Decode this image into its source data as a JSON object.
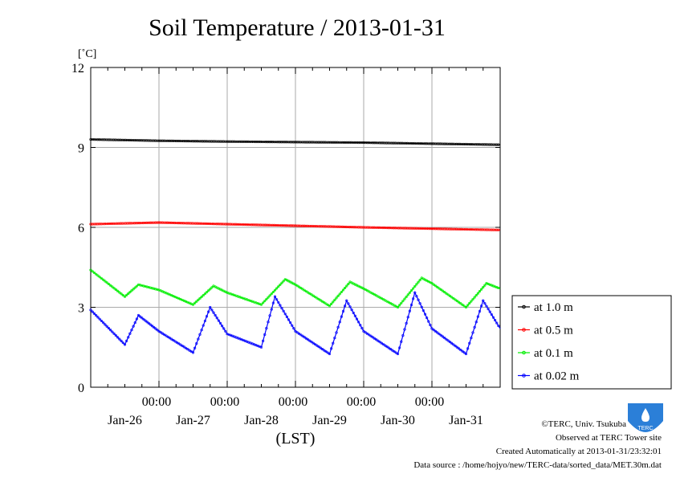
{
  "chart_data": {
    "type": "line",
    "title": "Soil Temperature / 2013-01-31",
    "ylabel": "[˚C]",
    "xlabel": "(LST)",
    "ylim": [
      0,
      12
    ],
    "yticks": [
      "0",
      "3",
      "6",
      "9",
      "12"
    ],
    "xlim_days": [
      0,
      6
    ],
    "xtick_time_labels": [
      "00:00",
      "00:00",
      "00:00",
      "00:00",
      "00:00"
    ],
    "xtick_date_labels": [
      "Jan-26",
      "Jan-27",
      "Jan-28",
      "Jan-29",
      "Jan-30",
      "Jan-31"
    ],
    "grid": true,
    "legend_position": "right",
    "series": [
      {
        "name": "at 1.0 m",
        "color": "#000000",
        "x": [
          0,
          1,
          2,
          3,
          4,
          5,
          6
        ],
        "y": [
          9.3,
          9.25,
          9.22,
          9.2,
          9.18,
          9.14,
          9.1
        ]
      },
      {
        "name": "at 0.5 m",
        "color": "#ff0000",
        "x": [
          0,
          1,
          2,
          3,
          4,
          5,
          6
        ],
        "y": [
          6.12,
          6.18,
          6.12,
          6.06,
          6.0,
          5.95,
          5.9
        ]
      },
      {
        "name": "at 0.1 m",
        "color": "#00ee00",
        "x": [
          0,
          0.5,
          0.7,
          1.0,
          1.5,
          1.8,
          2.0,
          2.5,
          2.85,
          3.0,
          3.5,
          3.8,
          4.0,
          4.5,
          4.85,
          5.0,
          5.5,
          5.8,
          6.0
        ],
        "y": [
          4.4,
          3.4,
          3.85,
          3.65,
          3.1,
          3.8,
          3.55,
          3.1,
          4.05,
          3.85,
          3.05,
          3.95,
          3.7,
          3.0,
          4.1,
          3.9,
          3.0,
          3.9,
          3.7
        ]
      },
      {
        "name": "at 0.02 m",
        "color": "#0000ff",
        "x": [
          0,
          0.5,
          0.7,
          1.0,
          1.5,
          1.75,
          2.0,
          2.5,
          2.7,
          3.0,
          3.5,
          3.75,
          4.0,
          4.5,
          4.75,
          5.0,
          5.5,
          5.75,
          6.0
        ],
        "y": [
          2.9,
          1.6,
          2.7,
          2.1,
          1.3,
          3.0,
          2.0,
          1.5,
          3.4,
          2.1,
          1.25,
          3.25,
          2.1,
          1.25,
          3.55,
          2.2,
          1.25,
          3.25,
          2.2
        ]
      }
    ]
  },
  "credits": {
    "copyright": "©TERC, Univ. Tsukuba",
    "observed": "Observed at TERC Tower site",
    "created": "Created Automatically at 2013-01-31/23:32:01",
    "source": "Data source : /home/hojyo/new/TERC-data/sorted_data/MET.30m.dat",
    "logo_text": "TERC"
  }
}
